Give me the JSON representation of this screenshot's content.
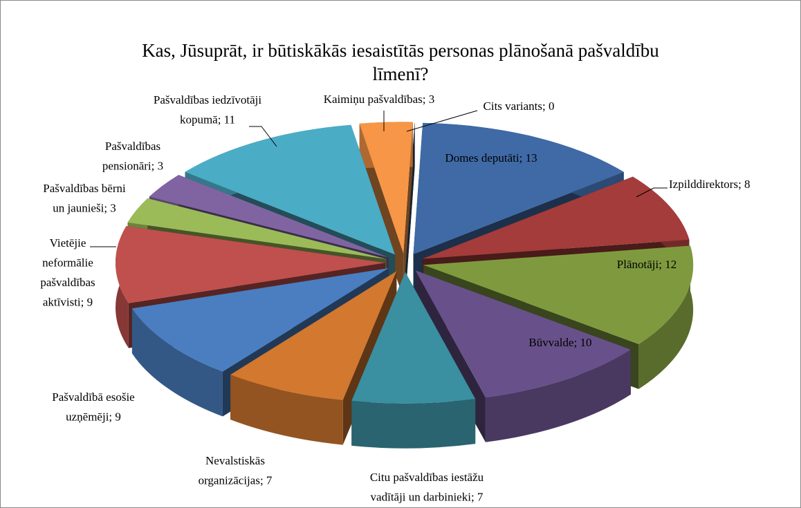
{
  "chart_data": {
    "type": "pie3d",
    "title": "Kas, Jūsuprāt, ir būtiskākās iesaistītās personas plānošanā pašvaldību\nlīmenī?",
    "values": [
      13,
      8,
      12,
      10,
      7,
      7,
      9,
      9,
      3,
      3,
      11,
      3,
      0
    ],
    "value_labels": [
      "Domes deputāti; 13",
      "Izpilddirektors; 8",
      "Plānotāji; 12",
      "Būvvalde; 10",
      "Citu pašvaldības iestāžu\nvadītāji un darbinieki; 7",
      "Nevalstiskās\norganizācijas; 7",
      "Pašvaldībā esošie\nuzņēmēji; 9",
      "Vietējie\nneformālie\npašvaldības\naktīvisti; 9",
      "Pašvaldības bērni\nun jaunieši; 3",
      "Pašvaldības\npensionāri; 3",
      "Pašvaldības iedzīvotāji\nkopumā; 11",
      "Kaimiņu pašvaldības; 3",
      "Cits variants; 0"
    ],
    "colors": [
      "#3f6aa6",
      "#a33c3a",
      "#7f9a3e",
      "#68518a",
      "#3a8fa0",
      "#d2782f",
      "#4a7ec0",
      "#c0504d",
      "#9bbb59",
      "#8064a2",
      "#4bacc6",
      "#f79646",
      "#2c4d75"
    ]
  }
}
